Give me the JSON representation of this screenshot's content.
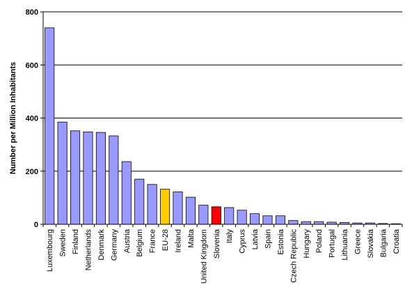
{
  "chart_data": {
    "type": "bar",
    "title": "",
    "xlabel": "",
    "ylabel": "Number per Million Inhabitants",
    "ylim": [
      0,
      800
    ],
    "yticks": [
      0,
      200,
      400,
      600,
      800
    ],
    "grid": true,
    "categories": [
      "Luxembourg",
      "Sweden",
      "Finland",
      "Netherlands",
      "Denmark",
      "Germany",
      "Austria",
      "Belgium",
      "France",
      "EU-28",
      "Ireland",
      "Malta",
      "United Kingdom",
      "Slovenia",
      "Italy",
      "Cyprus",
      "Latvia",
      "Spain",
      "Estonia",
      "Czech Republic",
      "Hungary",
      "Poland",
      "Portugal",
      "Lithuania",
      "Greece",
      "Slovakia",
      "Bulgaria",
      "Croatia"
    ],
    "values": [
      740,
      385,
      352,
      348,
      346,
      333,
      236,
      170,
      150,
      132,
      122,
      102,
      72,
      66,
      63,
      53,
      40,
      32,
      32,
      14,
      10,
      10,
      8,
      7,
      5,
      5,
      3,
      2
    ],
    "highlight": {
      "EU-28": "#ffcc00",
      "Slovenia": "#ff0000"
    },
    "colors": {
      "bar": "#9999ff",
      "bar_stroke": "#000000",
      "grid": "#000000"
    }
  }
}
